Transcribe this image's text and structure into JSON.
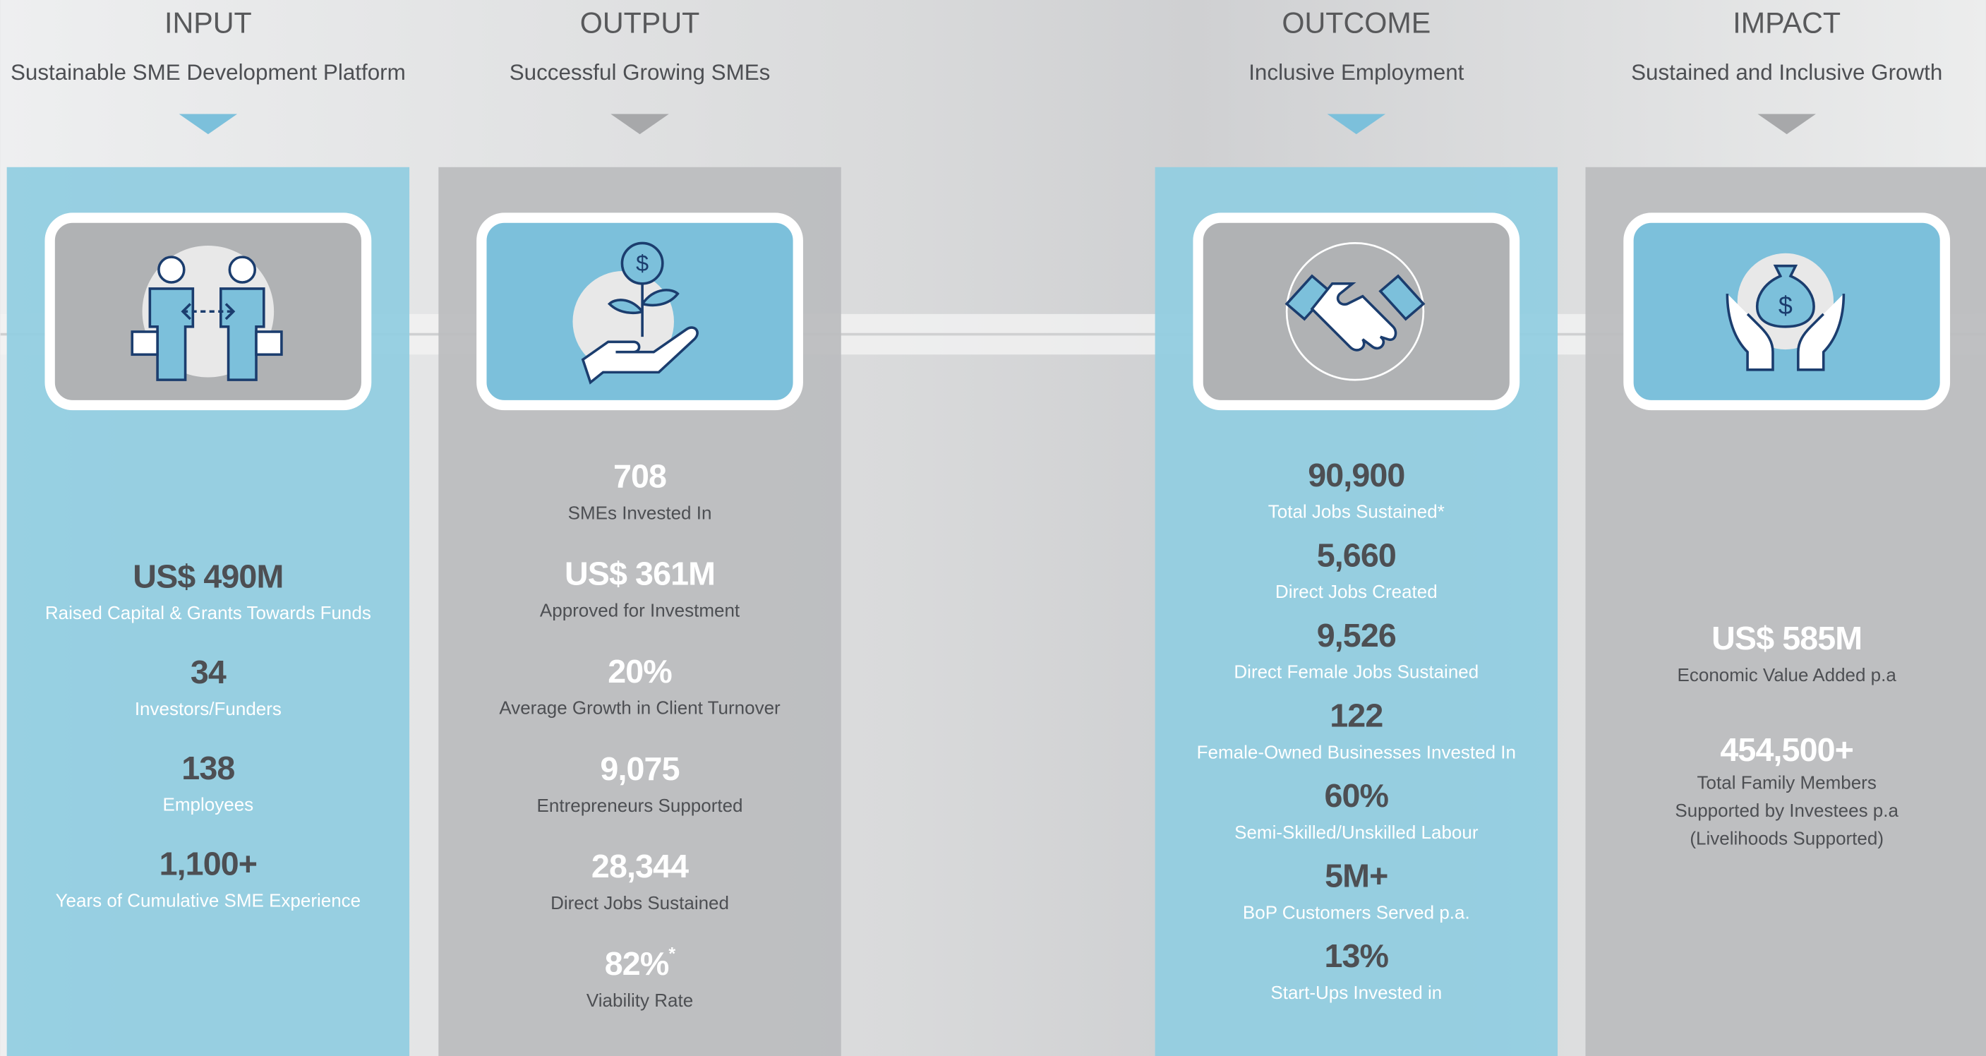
{
  "columns": [
    {
      "title": "INPUT",
      "subtitle": "Sustainable SME Development Platform",
      "stats": [
        {
          "value": "US$ 490M",
          "label": "Raised Capital & Grants Towards Funds"
        },
        {
          "value": "34",
          "label": "Investors/Funders"
        },
        {
          "value": "138",
          "label": "Employees"
        },
        {
          "value": "1,100+",
          "label": "Years of Cumulative SME Experience"
        }
      ]
    },
    {
      "title": "OUTPUT",
      "subtitle": "Successful Growing SMEs",
      "stats": [
        {
          "value": "708",
          "label": "SMEs Invested In"
        },
        {
          "value": "US$ 361M",
          "label": "Approved for Investment"
        },
        {
          "value": "20%",
          "label": "Average Growth in Client Turnover"
        },
        {
          "value": "9,075",
          "label": "Entrepreneurs Supported"
        },
        {
          "value": "28,344",
          "label": "Direct Jobs Sustained"
        },
        {
          "value": "82%",
          "note": "*",
          "label": "Viability Rate"
        }
      ]
    },
    {
      "title": "OUTCOME",
      "subtitle": "Inclusive Employment",
      "stats": [
        {
          "value": "90,900",
          "label": "Total Jobs Sustained*"
        },
        {
          "value": "5,660",
          "label": "Direct Jobs Created"
        },
        {
          "value": "9,526",
          "label": "Direct Female Jobs Sustained"
        },
        {
          "value": "122",
          "label": "Female-Owned Businesses Invested In"
        },
        {
          "value": "60%",
          "label": "Semi-Skilled/Unskilled Labour"
        },
        {
          "value": "5M+",
          "label": "BoP Customers Served p.a."
        },
        {
          "value": "13%",
          "label": "Start-Ups Invested in"
        }
      ]
    },
    {
      "title": "IMPACT",
      "subtitle": "Sustained and Inclusive Growth",
      "stats": [
        {
          "value": "US$ 585M",
          "label": "Economic Value Added p.a"
        },
        {
          "value": "454,500+",
          "label": [
            "Total Family Members",
            "Supported by Investees p.a",
            "(Livelihoods Supported)"
          ]
        }
      ]
    }
  ]
}
